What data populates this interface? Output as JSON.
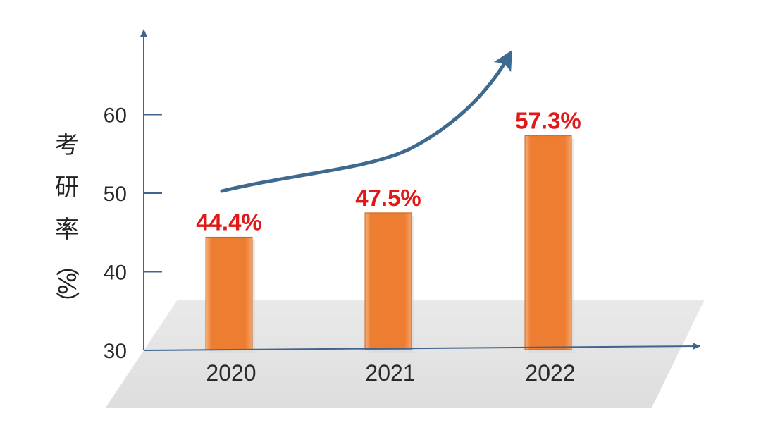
{
  "chart_data": {
    "type": "bar",
    "title": "",
    "xlabel": "",
    "ylabel": "考研率（%）",
    "ylabel_chars": [
      "考",
      "研",
      "率",
      "（",
      "%",
      "）"
    ],
    "categories": [
      "2020",
      "2021",
      "2022"
    ],
    "values": [
      44.4,
      47.5,
      57.3
    ],
    "data_labels": [
      "44.4%",
      "47.5%",
      "57.3%"
    ],
    "ylim": [
      30,
      70
    ],
    "yticks": [
      30,
      40,
      50,
      60
    ],
    "ytick_labels": [
      "30",
      "40",
      "50",
      "60"
    ],
    "grid": false,
    "annotations": [
      "upward trend arrow"
    ]
  },
  "colors": {
    "bar": "#ed7d31",
    "bar_highlight": "#f5a868",
    "bar_shadow": "#c9621c",
    "axis": "#3f6490",
    "trend_arrow": "#3f6a90",
    "data_label": "#e01818",
    "floor": "#e4e4e4"
  }
}
